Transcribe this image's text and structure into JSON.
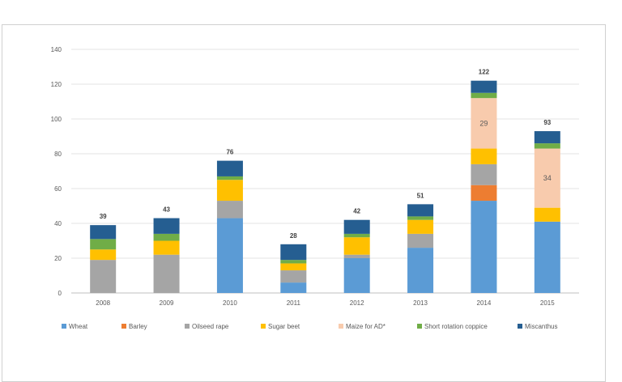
{
  "chart_data": {
    "type": "bar",
    "stacked": true,
    "categories": [
      "2008",
      "2009",
      "2010",
      "2011",
      "2012",
      "2013",
      "2014",
      "2015"
    ],
    "totals": [
      39,
      43,
      76,
      28,
      42,
      51,
      122,
      93
    ],
    "ylim": [
      0,
      140
    ],
    "yticks": [
      0,
      20,
      40,
      60,
      80,
      100,
      120,
      140
    ],
    "grid": true,
    "legend_position": "bottom",
    "series": [
      {
        "name": "Wheat",
        "color": "#5b9bd5",
        "values": [
          0,
          0,
          43,
          6,
          20,
          26,
          53,
          41
        ]
      },
      {
        "name": "Barley",
        "color": "#ed7d31",
        "values": [
          0,
          0,
          0,
          0,
          0,
          0,
          9,
          0
        ]
      },
      {
        "name": "Oilseed rape",
        "color": "#a5a5a5",
        "values": [
          19,
          22,
          10,
          7,
          2,
          8,
          12,
          0
        ]
      },
      {
        "name": "Sugar beet",
        "color": "#ffc000",
        "values": [
          6,
          8,
          12,
          4,
          10,
          8,
          9,
          8
        ]
      },
      {
        "name": "Maize for AD*",
        "color": "#f8cbad",
        "values": [
          0,
          0,
          0,
          0,
          0,
          0,
          29,
          34
        ]
      },
      {
        "name": "Short rotation coppice",
        "color": "#70ad47",
        "values": [
          6,
          4,
          2,
          2,
          2,
          2,
          3,
          3
        ]
      },
      {
        "name": "Miscanthus",
        "color": "#255e91",
        "values": [
          8,
          9,
          9,
          9,
          8,
          7,
          7,
          7
        ]
      }
    ],
    "segment_labels": [
      {
        "category": "2014",
        "series": "Maize for AD*",
        "text": "29"
      },
      {
        "category": "2015",
        "series": "Maize for AD*",
        "text": "34"
      }
    ]
  }
}
